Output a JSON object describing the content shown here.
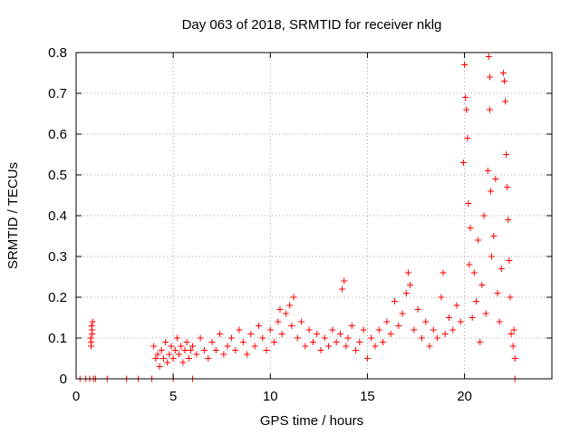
{
  "chart_data": {
    "type": "scatter",
    "title": "Day 063 of 2018, SRMTID for receiver nklg",
    "xlabel": "GPS time / hours",
    "ylabel": "SRMTID / TECUs",
    "xlim": [
      0,
      24.5
    ],
    "ylim": [
      0,
      0.8
    ],
    "xticks": [
      0,
      5,
      10,
      15,
      20
    ],
    "xtick_labels": [
      "0",
      "5",
      "10",
      "15",
      "20"
    ],
    "yticks": [
      0,
      0.1,
      0.2,
      0.3,
      0.4,
      0.5,
      0.6,
      0.7,
      0.8
    ],
    "ytick_labels": [
      "0",
      "0.1",
      "0.2",
      "0.3",
      "0.4",
      "0.5",
      "0.6",
      "0.7",
      "0.8"
    ],
    "grid": true,
    "marker": "+",
    "color": "#ff0000",
    "series": [
      {
        "name": "SRMTID",
        "points": [
          [
            0.2,
            0
          ],
          [
            0.5,
            0
          ],
          [
            0.7,
            0
          ],
          [
            0.9,
            0
          ],
          [
            1.0,
            0
          ],
          [
            1.6,
            0
          ],
          [
            2.6,
            0
          ],
          [
            3.2,
            0
          ],
          [
            3.9,
            0
          ],
          [
            5.0,
            0
          ],
          [
            6.0,
            0
          ],
          [
            22.6,
            0
          ],
          [
            0.75,
            0.1
          ],
          [
            0.78,
            0.09
          ],
          [
            0.8,
            0.13
          ],
          [
            0.82,
            0.12
          ],
          [
            0.85,
            0.14
          ],
          [
            0.77,
            0.08
          ],
          [
            0.83,
            0.11
          ],
          [
            4.0,
            0.08
          ],
          [
            4.1,
            0.05
          ],
          [
            4.2,
            0.06
          ],
          [
            4.3,
            0.03
          ],
          [
            4.4,
            0.07
          ],
          [
            4.5,
            0.05
          ],
          [
            4.6,
            0.09
          ],
          [
            4.7,
            0.04
          ],
          [
            4.8,
            0.06
          ],
          [
            4.9,
            0.08
          ],
          [
            5.0,
            0.05
          ],
          [
            5.1,
            0.07
          ],
          [
            5.2,
            0.1
          ],
          [
            5.3,
            0.06
          ],
          [
            5.4,
            0.08
          ],
          [
            5.5,
            0.04
          ],
          [
            5.6,
            0.07
          ],
          [
            5.7,
            0.09
          ],
          [
            5.8,
            0.05
          ],
          [
            5.9,
            0.07
          ],
          [
            6.0,
            0.08
          ],
          [
            6.2,
            0.06
          ],
          [
            6.4,
            0.1
          ],
          [
            6.6,
            0.07
          ],
          [
            6.8,
            0.05
          ],
          [
            7.0,
            0.09
          ],
          [
            7.2,
            0.07
          ],
          [
            7.4,
            0.11
          ],
          [
            7.6,
            0.06
          ],
          [
            7.8,
            0.08
          ],
          [
            8.0,
            0.1
          ],
          [
            8.2,
            0.07
          ],
          [
            8.4,
            0.12
          ],
          [
            8.6,
            0.09
          ],
          [
            8.8,
            0.06
          ],
          [
            9.0,
            0.11
          ],
          [
            9.2,
            0.08
          ],
          [
            9.4,
            0.13
          ],
          [
            9.6,
            0.1
          ],
          [
            9.8,
            0.07
          ],
          [
            10.0,
            0.12
          ],
          [
            10.2,
            0.09
          ],
          [
            10.4,
            0.14
          ],
          [
            10.5,
            0.17
          ],
          [
            10.6,
            0.11
          ],
          [
            10.8,
            0.16
          ],
          [
            11.0,
            0.18
          ],
          [
            11.1,
            0.13
          ],
          [
            11.2,
            0.2
          ],
          [
            11.4,
            0.1
          ],
          [
            11.6,
            0.14
          ],
          [
            11.8,
            0.08
          ],
          [
            12.0,
            0.12
          ],
          [
            12.2,
            0.09
          ],
          [
            12.4,
            0.11
          ],
          [
            12.6,
            0.07
          ],
          [
            12.8,
            0.1
          ],
          [
            13.0,
            0.08
          ],
          [
            13.2,
            0.12
          ],
          [
            13.4,
            0.09
          ],
          [
            13.6,
            0.11
          ],
          [
            13.7,
            0.22
          ],
          [
            13.8,
            0.24
          ],
          [
            13.9,
            0.08
          ],
          [
            14.0,
            0.1
          ],
          [
            14.2,
            0.13
          ],
          [
            14.4,
            0.07
          ],
          [
            14.6,
            0.09
          ],
          [
            14.8,
            0.12
          ],
          [
            15.0,
            0.05
          ],
          [
            15.2,
            0.1
          ],
          [
            15.4,
            0.08
          ],
          [
            15.6,
            0.12
          ],
          [
            15.8,
            0.09
          ],
          [
            16.0,
            0.14
          ],
          [
            16.2,
            0.11
          ],
          [
            16.4,
            0.19
          ],
          [
            16.6,
            0.13
          ],
          [
            16.8,
            0.16
          ],
          [
            17.0,
            0.21
          ],
          [
            17.1,
            0.26
          ],
          [
            17.2,
            0.23
          ],
          [
            17.4,
            0.12
          ],
          [
            17.6,
            0.17
          ],
          [
            17.8,
            0.1
          ],
          [
            18.0,
            0.14
          ],
          [
            18.2,
            0.08
          ],
          [
            18.4,
            0.12
          ],
          [
            18.6,
            0.1
          ],
          [
            18.8,
            0.2
          ],
          [
            18.9,
            0.26
          ],
          [
            19.0,
            0.11
          ],
          [
            19.2,
            0.15
          ],
          [
            19.4,
            0.12
          ],
          [
            19.6,
            0.18
          ],
          [
            19.8,
            0.14
          ],
          [
            19.95,
            0.53
          ],
          [
            20.0,
            0.77
          ],
          [
            20.05,
            0.69
          ],
          [
            20.1,
            0.66
          ],
          [
            20.15,
            0.59
          ],
          [
            20.2,
            0.43
          ],
          [
            20.25,
            0.28
          ],
          [
            20.3,
            0.37
          ],
          [
            20.4,
            0.15
          ],
          [
            20.5,
            0.26
          ],
          [
            20.6,
            0.19
          ],
          [
            20.7,
            0.34
          ],
          [
            20.8,
            0.09
          ],
          [
            20.9,
            0.23
          ],
          [
            21.0,
            0.4
          ],
          [
            21.1,
            0.16
          ],
          [
            21.2,
            0.51
          ],
          [
            21.25,
            0.79
          ],
          [
            21.3,
            0.74
          ],
          [
            21.3,
            0.66
          ],
          [
            21.35,
            0.46
          ],
          [
            21.4,
            0.3
          ],
          [
            21.5,
            0.35
          ],
          [
            21.6,
            0.49
          ],
          [
            21.7,
            0.21
          ],
          [
            21.8,
            0.14
          ],
          [
            21.9,
            0.27
          ],
          [
            22.0,
            0.75
          ],
          [
            22.05,
            0.73
          ],
          [
            22.1,
            0.68
          ],
          [
            22.15,
            0.55
          ],
          [
            22.2,
            0.47
          ],
          [
            22.25,
            0.39
          ],
          [
            22.3,
            0.29
          ],
          [
            22.35,
            0.2
          ],
          [
            22.4,
            0.11
          ],
          [
            22.5,
            0.08
          ],
          [
            22.55,
            0.12
          ],
          [
            22.6,
            0.05
          ]
        ]
      }
    ]
  }
}
